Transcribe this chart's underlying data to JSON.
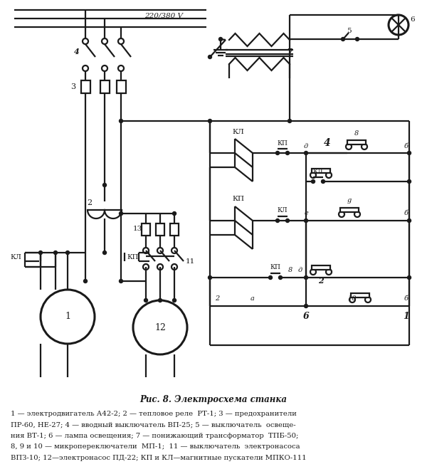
{
  "title": "Рис. 8. Электросхема станка",
  "caption_lines": [
    "1 — электродвигатель А42-2; 2 — тепловое реле  РТ-1; 3 — предохранители",
    "ПР-60, НЕ-27; 4 — вводный выключатель ВП-25; 5 — выключатель  освеще-",
    "ния ВТ-1; 6 — лампа освещения; 7 — понижающий трансформатор  ТПБ-50;",
    "8, 9 и 10 — микропереключатели  МП-1;  11 — выключатель  электронасоса",
    "ВПЗ-10; 12—электронасос ПД-22; КП и КЛ—магнитные пускатели МПКО-111"
  ],
  "bg_color": "#ffffff",
  "line_color": "#1a1a1a",
  "title_fontsize": 8.5,
  "caption_fontsize": 7.2
}
